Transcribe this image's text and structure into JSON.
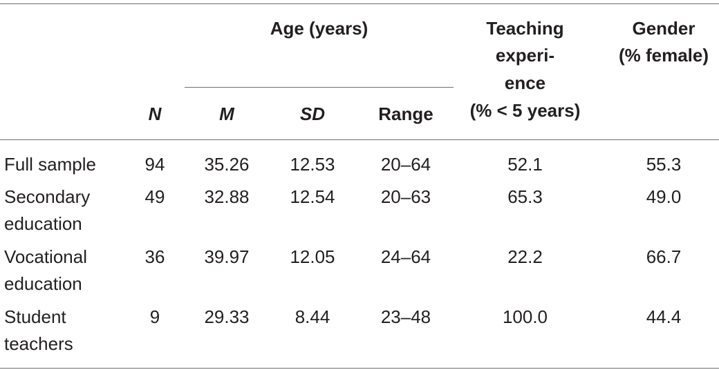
{
  "header": {
    "age_group": "Age (years)",
    "teaching_lines": [
      "Teaching",
      "experi-",
      "ence",
      "(% < 5 years)"
    ],
    "gender_lines": [
      "Gender",
      "(% female)"
    ],
    "n": "N",
    "m": "M",
    "sd": "SD",
    "range": "Range"
  },
  "rows": [
    {
      "label": [
        "Full sample"
      ],
      "n": "94",
      "m": "35.26",
      "sd": "12.53",
      "range": "20–64",
      "teaching": "52.1",
      "gender": "55.3"
    },
    {
      "label": [
        "Secondary",
        "education"
      ],
      "n": "49",
      "m": "32.88",
      "sd": "12.54",
      "range": "20–63",
      "teaching": "65.3",
      "gender": "49.0"
    },
    {
      "label": [
        "Vocational",
        "education"
      ],
      "n": "36",
      "m": "39.97",
      "sd": "12.05",
      "range": "24–64",
      "teaching": "22.2",
      "gender": "66.7"
    },
    {
      "label": [
        "Student",
        "teachers"
      ],
      "n": "9",
      "m": "29.33",
      "sd": "8.44",
      "range": "23–48",
      "teaching": "100.0",
      "gender": "44.4"
    }
  ]
}
